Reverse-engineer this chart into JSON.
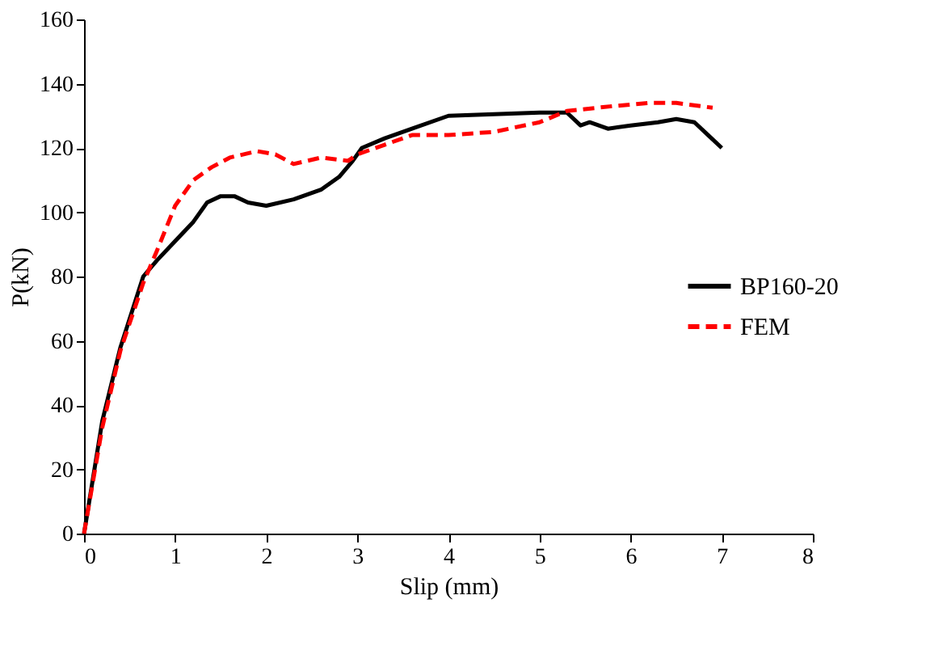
{
  "chart_data": {
    "type": "line",
    "xlabel": "Slip (mm)",
    "ylabel": "P(kN)",
    "xlim": [
      0,
      8
    ],
    "xticks": [
      0,
      1,
      2,
      3,
      4,
      5,
      6,
      7,
      8
    ],
    "ylim": [
      0,
      160
    ],
    "yticks": [
      0,
      20,
      40,
      60,
      80,
      100,
      120,
      140,
      160
    ],
    "grid": false,
    "legend": "right",
    "marker": "none",
    "series": [
      {
        "name": "BP160-20",
        "color": "#000000",
        "line_style": "solid",
        "x": [
          0,
          0.2,
          0.4,
          0.65,
          0.8,
          1.0,
          1.2,
          1.35,
          1.5,
          1.65,
          1.8,
          2.0,
          2.3,
          2.6,
          2.8,
          2.95,
          3.05,
          3.3,
          3.6,
          4.0,
          4.5,
          5.0,
          5.3,
          5.45,
          5.55,
          5.75,
          6.0,
          6.3,
          6.5,
          6.7,
          6.85,
          7.0
        ],
        "values": [
          0,
          35,
          58,
          80,
          85,
          91,
          97,
          103,
          105,
          105,
          103,
          102,
          104,
          107,
          111,
          116,
          120,
          123,
          126,
          130,
          130.5,
          131,
          131,
          127,
          128,
          126,
          127,
          128,
          129,
          128,
          124,
          120
        ]
      },
      {
        "name": "FEM",
        "color": "#ff0000",
        "line_style": "dashed",
        "x": [
          0,
          0.2,
          0.4,
          0.65,
          0.8,
          1.0,
          1.2,
          1.4,
          1.6,
          1.9,
          2.1,
          2.3,
          2.6,
          2.9,
          3.0,
          3.3,
          3.6,
          4.0,
          4.5,
          5.0,
          5.3,
          5.8,
          6.2,
          6.5,
          6.9
        ],
        "values": [
          0,
          33,
          57,
          78,
          88,
          102,
          110,
          114,
          117,
          119,
          118,
          115,
          117,
          116,
          118,
          121,
          124,
          124,
          125,
          128,
          131.5,
          133,
          134,
          134,
          132.5
        ]
      }
    ]
  }
}
